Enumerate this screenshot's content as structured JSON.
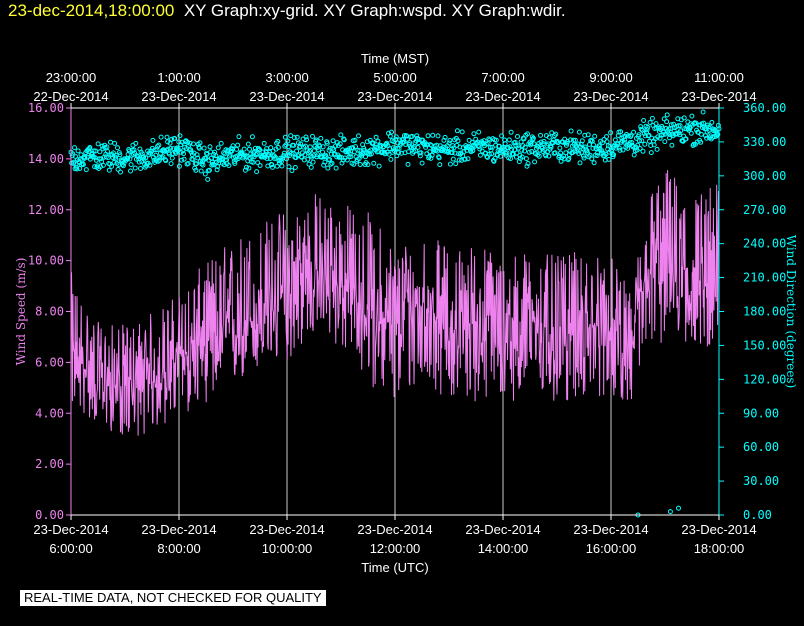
{
  "header": {
    "timestamp": "23-dec-2014,18:00:00",
    "graphs": "XY Graph:xy-grid.  XY Graph:wspd.  XY Graph:wdir."
  },
  "footer": {
    "disclaimer": "REAL-TIME DATA, NOT CHECKED FOR QUALITY"
  },
  "colors": {
    "wspd": "#ee82ee",
    "wdir": "#00ffff",
    "grid": "#ffffff",
    "background": "#000000"
  },
  "chart_data": {
    "type": "line",
    "grid": true,
    "x_top": {
      "label": "Time (MST)",
      "ticks": [
        {
          "time": "23:00:00",
          "date": "22-Dec-2014"
        },
        {
          "time": "1:00:00",
          "date": "23-Dec-2014"
        },
        {
          "time": "3:00:00",
          "date": "23-Dec-2014"
        },
        {
          "time": "5:00:00",
          "date": "23-Dec-2014"
        },
        {
          "time": "7:00:00",
          "date": "23-Dec-2014"
        },
        {
          "time": "9:00:00",
          "date": "23-Dec-2014"
        },
        {
          "time": "11:00:00",
          "date": "23-Dec-2014"
        }
      ]
    },
    "x_bottom": {
      "label": "Time (UTC)",
      "ticks": [
        {
          "date": "23-Dec-2014",
          "time": "6:00:00"
        },
        {
          "date": "23-Dec-2014",
          "time": "8:00:00"
        },
        {
          "date": "23-Dec-2014",
          "time": "10:00:00"
        },
        {
          "date": "23-Dec-2014",
          "time": "12:00:00"
        },
        {
          "date": "23-Dec-2014",
          "time": "14:00:00"
        },
        {
          "date": "23-Dec-2014",
          "time": "16:00:00"
        },
        {
          "date": "23-Dec-2014",
          "time": "18:00:00"
        }
      ]
    },
    "xlim_utc_hours": [
      6,
      18
    ],
    "y_left": {
      "label": "Wind Speed (m/s)",
      "ylim": [
        0,
        16
      ],
      "ticks": [
        "0.00",
        "2.00",
        "4.00",
        "6.00",
        "8.00",
        "10.00",
        "12.00",
        "14.00",
        "16.00"
      ]
    },
    "y_right": {
      "label": "Wind Direction (degrees)",
      "ylim": [
        0,
        360
      ],
      "ticks": [
        "0.00",
        "30.00",
        "60.00",
        "90.00",
        "120.00",
        "150.00",
        "180.00",
        "210.00",
        "240.00",
        "270.00",
        "300.00",
        "330.00",
        "360.00"
      ]
    },
    "series": [
      {
        "name": "wspd",
        "axis": "left",
        "style": "line",
        "x_utc_hours": [
          6.0,
          6.5,
          7.0,
          7.5,
          8.0,
          8.5,
          9.0,
          9.5,
          10.0,
          10.5,
          11.0,
          11.5,
          12.0,
          12.5,
          13.0,
          13.5,
          14.0,
          14.5,
          15.0,
          15.5,
          16.0,
          16.4,
          16.6,
          17.0,
          17.5,
          18.0
        ],
        "mean": [
          6.2,
          5.3,
          5.0,
          5.2,
          6.2,
          6.8,
          7.2,
          7.8,
          8.6,
          9.6,
          9.0,
          8.0,
          7.4,
          8.4,
          7.2,
          7.6,
          7.0,
          7.8,
          7.0,
          7.4,
          7.2,
          6.4,
          8.8,
          10.4,
          9.2,
          8.4
        ],
        "min": [
          4.2,
          3.5,
          3.0,
          3.2,
          3.8,
          4.4,
          5.0,
          5.6,
          6.0,
          7.0,
          6.5,
          5.2,
          4.2,
          5.0,
          4.6,
          4.4,
          4.4,
          4.6,
          4.2,
          4.6,
          4.6,
          4.4,
          6.0,
          6.8,
          6.6,
          6.6
        ],
        "max": [
          9.6,
          7.6,
          7.5,
          8.0,
          8.8,
          10.0,
          11.0,
          11.6,
          12.2,
          12.8,
          12.4,
          12.0,
          10.8,
          11.2,
          10.6,
          10.8,
          10.4,
          10.4,
          10.2,
          10.4,
          10.2,
          8.6,
          12.6,
          13.8,
          12.8,
          13.2
        ]
      },
      {
        "name": "wdir",
        "axis": "right",
        "style": "scatter",
        "x_utc_hours": [
          6.0,
          6.5,
          7.0,
          7.5,
          8.0,
          8.5,
          9.0,
          9.5,
          10.0,
          10.5,
          11.0,
          11.5,
          12.0,
          12.5,
          13.0,
          13.5,
          14.0,
          14.5,
          15.0,
          15.5,
          16.0,
          16.5,
          17.0,
          17.5,
          18.0
        ],
        "mean": [
          316,
          317,
          316,
          318,
          325,
          312,
          318,
          319,
          321,
          322,
          320,
          323,
          328,
          325,
          323,
          325,
          324,
          325,
          326,
          324,
          327,
          332,
          338,
          342,
          340
        ],
        "spread": 13,
        "outliers": [
          {
            "x_utc_hours": 16.5,
            "y": 0
          },
          {
            "x_utc_hours": 17.1,
            "y": 3
          },
          {
            "x_utc_hours": 17.25,
            "y": 6
          }
        ]
      }
    ]
  }
}
